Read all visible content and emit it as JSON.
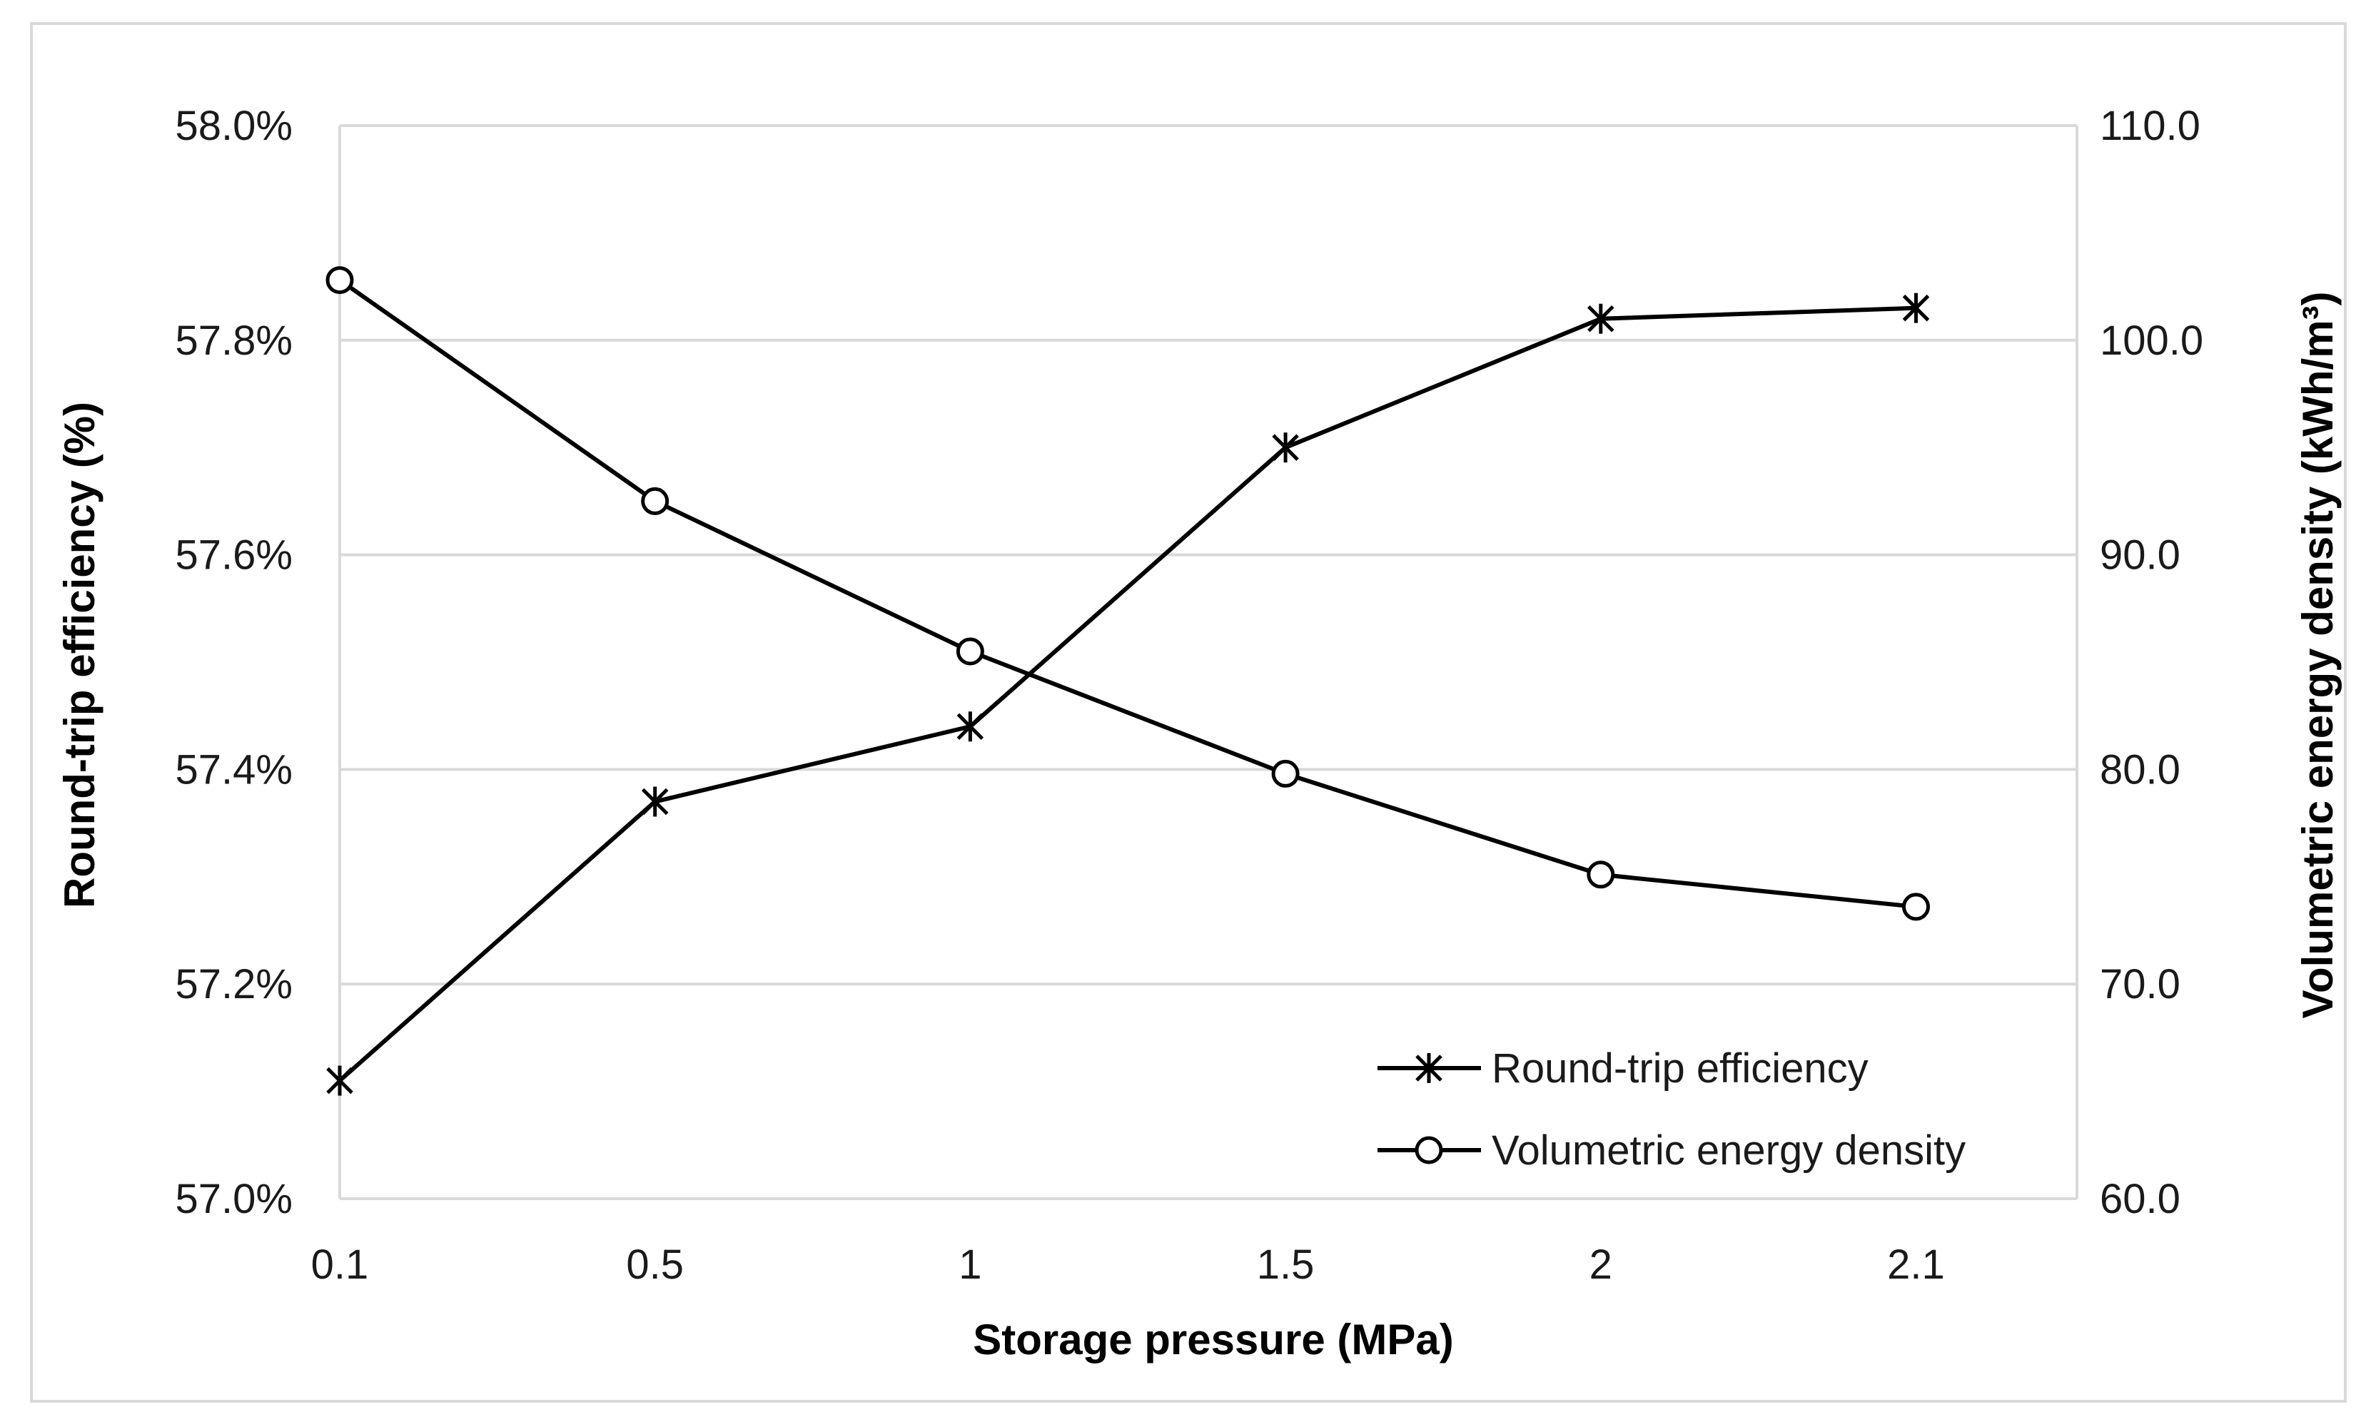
{
  "chart_data": {
    "type": "line",
    "title": "",
    "categories": [
      "0.1",
      "0.5",
      "1",
      "1.5",
      "2",
      "2.1"
    ],
    "xlabel": "Storage pressure (MPa)",
    "ylabel": "Round-trip efficiency (%)",
    "y2label": "Volumetric energy density (kWh/m³)",
    "ylim": [
      57.0,
      58.0
    ],
    "y2lim": [
      60.0,
      110.0
    ],
    "y_ticks": [
      "57.0%",
      "57.2%",
      "57.4%",
      "57.6%",
      "57.8%",
      "58.0%"
    ],
    "y2_ticks": [
      "60.0",
      "70.0",
      "80.0",
      "90.0",
      "100.0",
      "110.0"
    ],
    "grid": true,
    "legend_position": "bottom-right",
    "series": [
      {
        "name": "Round-trip efficiency",
        "axis": "left",
        "marker": "asterisk",
        "values": [
          57.11,
          57.37,
          57.44,
          57.7,
          57.82,
          57.83
        ]
      },
      {
        "name": "Volumetric energy density",
        "axis": "right",
        "marker": "circle",
        "values": [
          102.8,
          92.5,
          85.5,
          79.8,
          75.1,
          73.6
        ]
      }
    ],
    "colors": {
      "line": "#000000",
      "grid": "#d9d9d9",
      "frame": "#d9d9d9"
    }
  }
}
